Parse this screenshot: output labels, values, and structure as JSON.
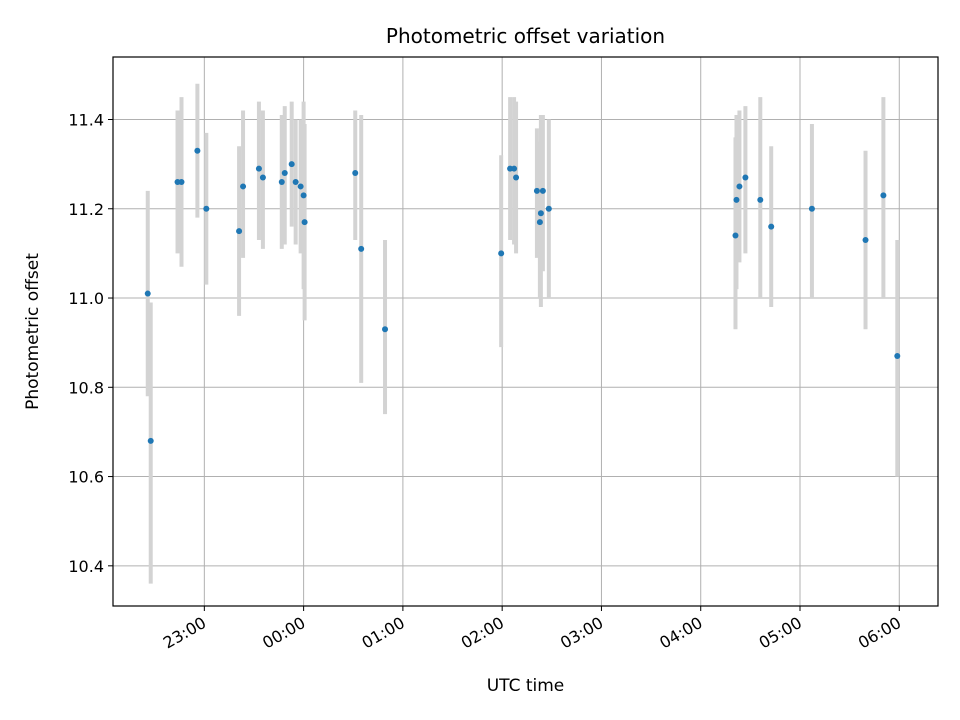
{
  "chart_data": {
    "type": "scatter",
    "title": "Photometric offset variation",
    "xlabel": "UTC time",
    "ylabel": "Photometric offset",
    "x_is_time": true,
    "x_unit": "hours after 22:00 UTC (day boundary at 00:00)",
    "xlim": [
      0.08,
      8.39
    ],
    "ylim": [
      10.31,
      11.54
    ],
    "grid": true,
    "x_ticks": [
      {
        "value": 1.0,
        "label": "23:00"
      },
      {
        "value": 2.0,
        "label": "00:00"
      },
      {
        "value": 3.0,
        "label": "01:00"
      },
      {
        "value": 4.0,
        "label": "02:00"
      },
      {
        "value": 5.0,
        "label": "03:00"
      },
      {
        "value": 6.0,
        "label": "04:00"
      },
      {
        "value": 7.0,
        "label": "05:00"
      },
      {
        "value": 8.0,
        "label": "06:00"
      }
    ],
    "y_ticks": [
      {
        "value": 10.4,
        "label": "10.4"
      },
      {
        "value": 10.6,
        "label": "10.6"
      },
      {
        "value": 10.8,
        "label": "10.8"
      },
      {
        "value": 11.0,
        "label": "11.0"
      },
      {
        "value": 11.2,
        "label": "11.2"
      },
      {
        "value": 11.4,
        "label": "11.4"
      }
    ],
    "colors": {
      "point": "#1f77b4",
      "errorbar": "#d3d3d3",
      "grid": "#b0b0b0",
      "axis": "#000000"
    },
    "points": [
      {
        "x": 0.43,
        "y": 11.01,
        "ylo": 10.78,
        "yhi": 11.24
      },
      {
        "x": 0.46,
        "y": 10.68,
        "ylo": 10.36,
        "yhi": 10.99
      },
      {
        "x": 0.73,
        "y": 11.26,
        "ylo": 11.1,
        "yhi": 11.42
      },
      {
        "x": 0.77,
        "y": 11.26,
        "ylo": 11.07,
        "yhi": 11.45
      },
      {
        "x": 0.93,
        "y": 11.33,
        "ylo": 11.18,
        "yhi": 11.48
      },
      {
        "x": 1.02,
        "y": 11.2,
        "ylo": 11.03,
        "yhi": 11.37
      },
      {
        "x": 1.35,
        "y": 11.15,
        "ylo": 10.96,
        "yhi": 11.34
      },
      {
        "x": 1.39,
        "y": 11.25,
        "ylo": 11.09,
        "yhi": 11.42
      },
      {
        "x": 1.55,
        "y": 11.29,
        "ylo": 11.13,
        "yhi": 11.44
      },
      {
        "x": 1.59,
        "y": 11.27,
        "ylo": 11.11,
        "yhi": 11.42
      },
      {
        "x": 1.78,
        "y": 11.26,
        "ylo": 11.11,
        "yhi": 11.41
      },
      {
        "x": 1.81,
        "y": 11.28,
        "ylo": 11.12,
        "yhi": 11.43
      },
      {
        "x": 1.88,
        "y": 11.3,
        "ylo": 11.16,
        "yhi": 11.44
      },
      {
        "x": 1.92,
        "y": 11.26,
        "ylo": 11.12,
        "yhi": 11.4
      },
      {
        "x": 1.97,
        "y": 11.25,
        "ylo": 11.1,
        "yhi": 11.4
      },
      {
        "x": 2.0,
        "y": 11.23,
        "ylo": 11.02,
        "yhi": 11.44
      },
      {
        "x": 2.01,
        "y": 11.17,
        "ylo": 10.95,
        "yhi": 11.39
      },
      {
        "x": 2.52,
        "y": 11.28,
        "ylo": 11.13,
        "yhi": 11.42
      },
      {
        "x": 2.58,
        "y": 11.11,
        "ylo": 10.81,
        "yhi": 11.41
      },
      {
        "x": 2.82,
        "y": 10.93,
        "ylo": 10.74,
        "yhi": 11.13
      },
      {
        "x": 3.99,
        "y": 11.1,
        "ylo": 10.89,
        "yhi": 11.32
      },
      {
        "x": 4.08,
        "y": 11.29,
        "ylo": 11.13,
        "yhi": 11.45
      },
      {
        "x": 4.12,
        "y": 11.29,
        "ylo": 11.12,
        "yhi": 11.45
      },
      {
        "x": 4.14,
        "y": 11.27,
        "ylo": 11.1,
        "yhi": 11.44
      },
      {
        "x": 4.35,
        "y": 11.24,
        "ylo": 11.09,
        "yhi": 11.38
      },
      {
        "x": 4.38,
        "y": 11.17,
        "ylo": 11.0,
        "yhi": 11.35
      },
      {
        "x": 4.39,
        "y": 11.19,
        "ylo": 10.98,
        "yhi": 11.41
      },
      {
        "x": 4.41,
        "y": 11.24,
        "ylo": 11.06,
        "yhi": 11.41
      },
      {
        "x": 4.47,
        "y": 11.2,
        "ylo": 11.0,
        "yhi": 11.4
      },
      {
        "x": 6.35,
        "y": 11.14,
        "ylo": 10.93,
        "yhi": 11.36
      },
      {
        "x": 6.36,
        "y": 11.22,
        "ylo": 11.02,
        "yhi": 11.41
      },
      {
        "x": 6.39,
        "y": 11.25,
        "ylo": 11.08,
        "yhi": 11.42
      },
      {
        "x": 6.45,
        "y": 11.27,
        "ylo": 11.1,
        "yhi": 11.43
      },
      {
        "x": 6.6,
        "y": 11.22,
        "ylo": 11.0,
        "yhi": 11.45
      },
      {
        "x": 6.71,
        "y": 11.16,
        "ylo": 10.98,
        "yhi": 11.34
      },
      {
        "x": 7.12,
        "y": 11.2,
        "ylo": 11.0,
        "yhi": 11.39
      },
      {
        "x": 7.66,
        "y": 11.13,
        "ylo": 10.93,
        "yhi": 11.33
      },
      {
        "x": 7.84,
        "y": 11.23,
        "ylo": 11.0,
        "yhi": 11.45
      },
      {
        "x": 7.98,
        "y": 10.87,
        "ylo": 10.6,
        "yhi": 11.13
      }
    ]
  }
}
